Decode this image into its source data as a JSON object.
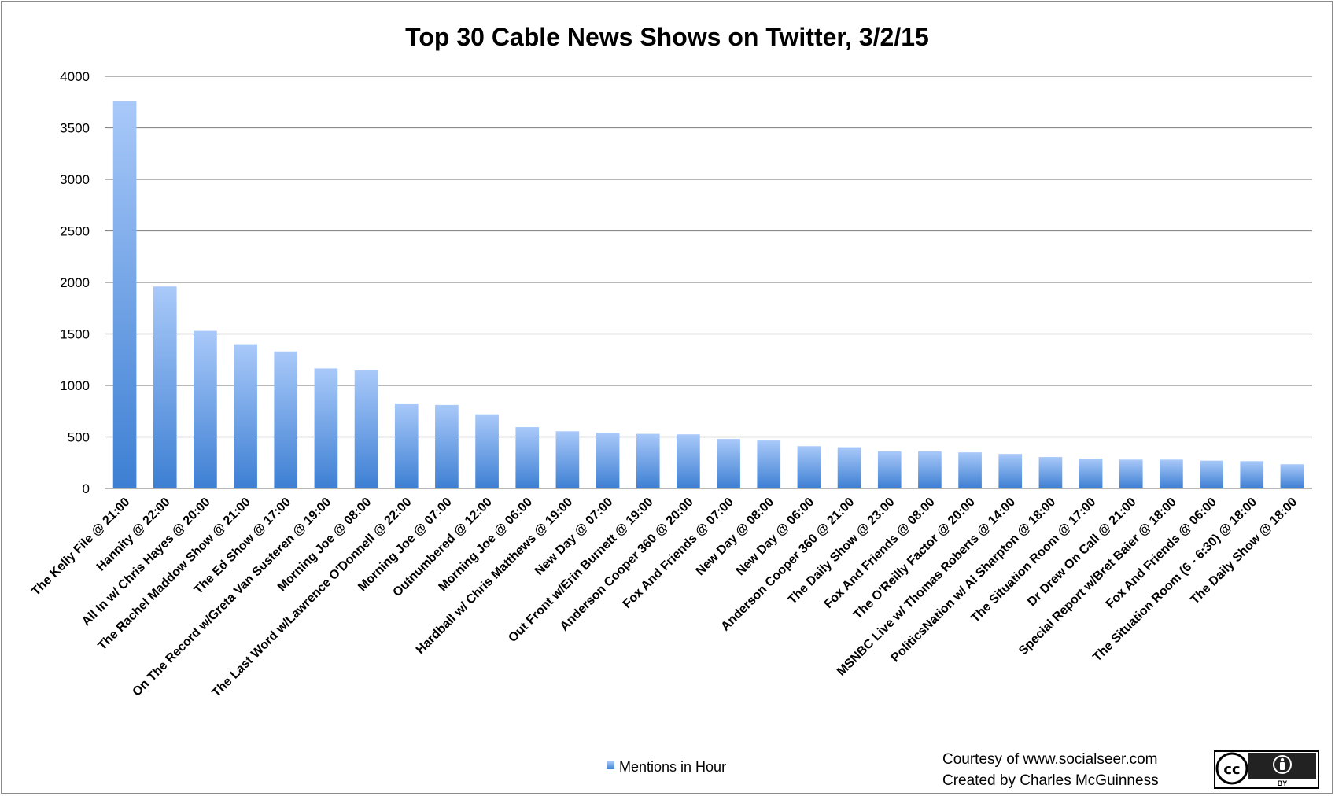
{
  "chart_data": {
    "type": "bar",
    "title": "Top 30 Cable News Shows on Twitter, 3/2/15",
    "xlabel": "",
    "ylabel": "",
    "ylim": [
      0,
      4000
    ],
    "yticks": [
      0,
      500,
      1000,
      1500,
      2000,
      2500,
      3000,
      3500,
      4000
    ],
    "grid": true,
    "legend_position": "bottom",
    "categories": [
      "The Kelly File @ 21:00",
      "Hannity @ 22:00",
      "All In w/ Chris Hayes @ 20:00",
      "The Rachel Maddow Show @ 21:00",
      "The Ed Show @ 17:00",
      "On The Record w/Greta Van Susteren @ 19:00",
      "Morning Joe @ 08:00",
      "The Last Word w/Lawrence O'Donnell @ 22:00",
      "Morning Joe @ 07:00",
      "Outnumbered @ 12:00",
      "Morning Joe @ 06:00",
      "Hardball w/ Chris Matthews @ 19:00",
      "New Day @ 07:00",
      "Out Front w/Erin Burnett @ 19:00",
      "Anderson Cooper 360 @ 20:00",
      "Fox And Friends @ 07:00",
      "New Day @ 08:00",
      "New Day @ 06:00",
      "Anderson Cooper 360 @ 21:00",
      "The Daily Show @ 23:00",
      "Fox And Friends @ 08:00",
      "The O'Reilly Factor @ 20:00",
      "MSNBC Live w/ Thomas Roberts @ 14:00",
      "PoliticsNation w/ Al Sharpton @ 18:00",
      "The Situation Room @ 17:00",
      "Dr Drew On Call @ 21:00",
      "Special Report w/Bret Baier @ 18:00",
      "Fox And Friends @ 06:00",
      "The Situation Room (6 - 6:30) @ 18:00",
      "The Daily Show @ 18:00"
    ],
    "series": [
      {
        "name": "Mentions in Hour",
        "values": [
          3760,
          1960,
          1530,
          1400,
          1330,
          1165,
          1145,
          825,
          810,
          720,
          595,
          555,
          540,
          530,
          525,
          480,
          465,
          410,
          400,
          360,
          360,
          350,
          335,
          305,
          290,
          280,
          280,
          270,
          265,
          235
        ]
      }
    ]
  },
  "footer": {
    "credit_line1": "Courtesy of www.socialseer.com",
    "credit_line2": "Created by Charles McGuinness",
    "license_badge": "BY"
  },
  "colors": {
    "bar_top": "#a9c9f9",
    "bar_bottom": "#3d7fd3",
    "grid": "#8c8c8c"
  },
  "icons": [
    "creative-commons-icon",
    "attribution-person-icon"
  ]
}
